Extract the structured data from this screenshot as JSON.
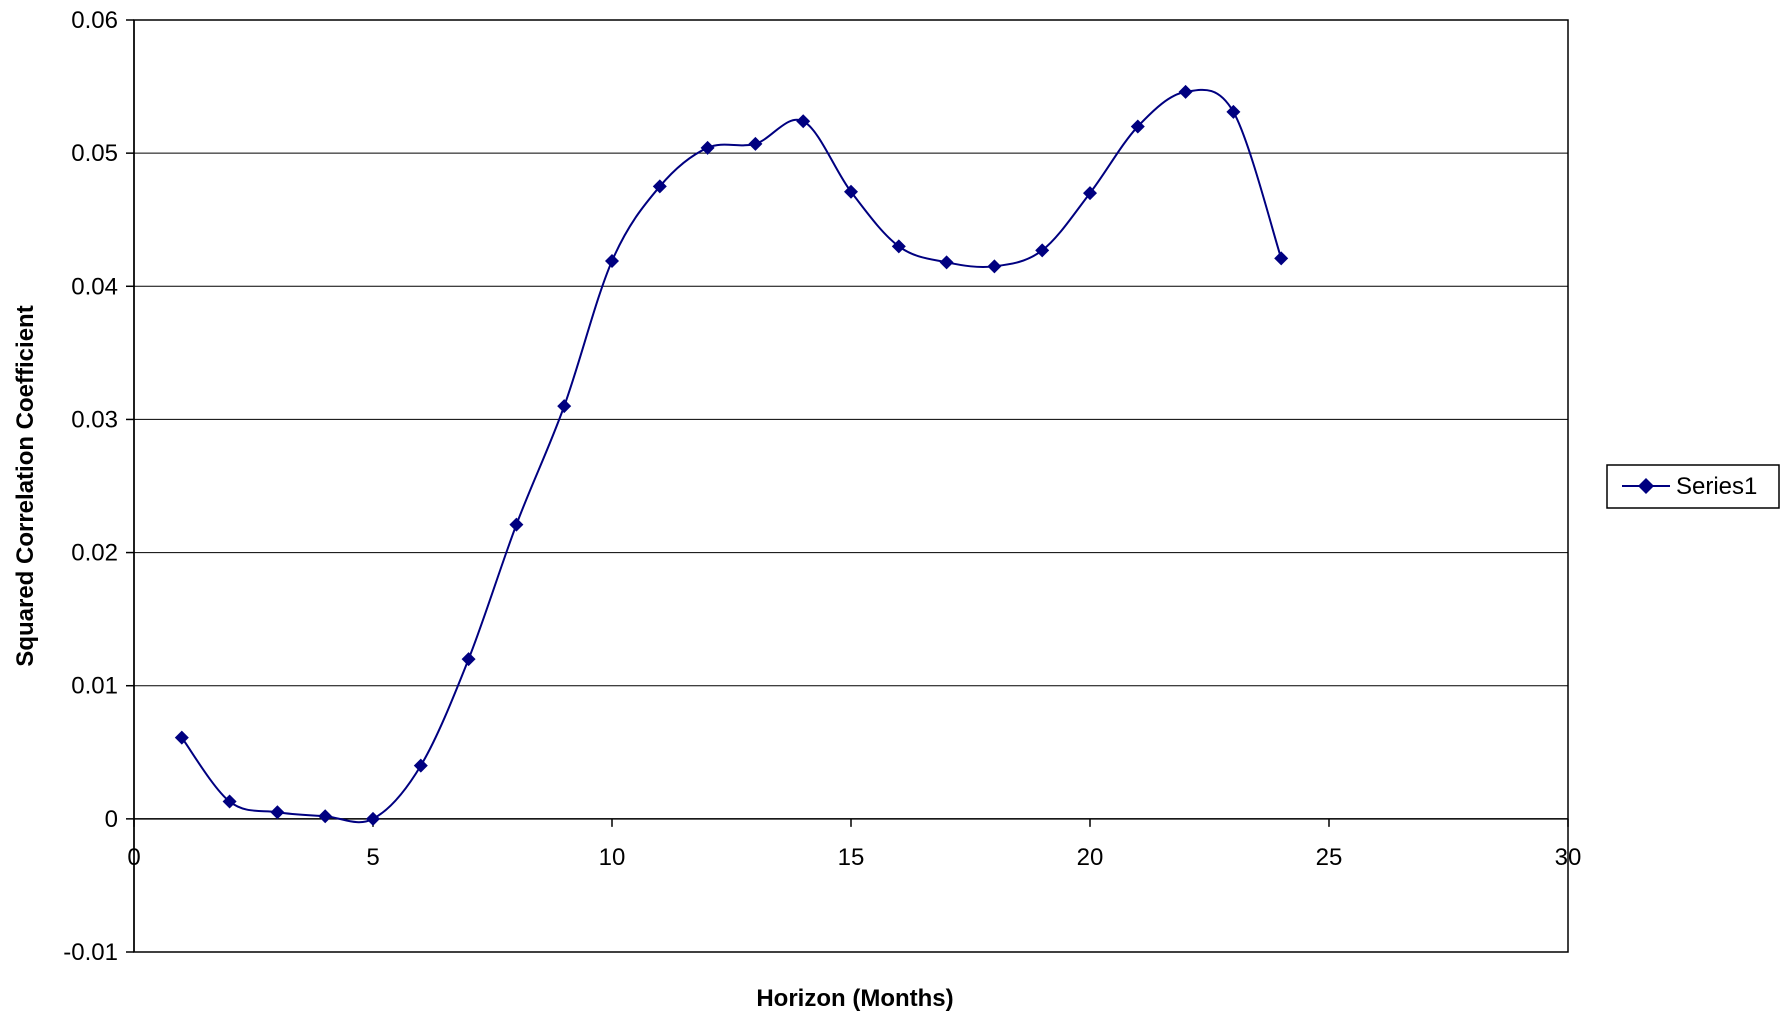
{
  "chart_data": {
    "type": "scatter",
    "title": "",
    "xlabel": "Horizon (Months)",
    "ylabel": "Squared Correlation Coefficient",
    "xlim": [
      0,
      30
    ],
    "ylim": [
      -0.01,
      0.06
    ],
    "x_ticks": [
      "0",
      "5",
      "10",
      "15",
      "20",
      "25",
      "30"
    ],
    "y_ticks": [
      "-0.01",
      "0",
      "0.01",
      "0.02",
      "0.03",
      "0.04",
      "0.05",
      "0.06"
    ],
    "x_tick_values": [
      0,
      5,
      10,
      15,
      20,
      25,
      30
    ],
    "y_tick_values": [
      -0.01,
      0,
      0.01,
      0.02,
      0.03,
      0.04,
      0.05,
      0.06
    ],
    "grid": "horizontal major gridlines",
    "line_style": "smoothed line with diamond markers",
    "legend_position": "right",
    "series": [
      {
        "name": "Series1",
        "color": "#000080",
        "x": [
          1,
          2,
          3,
          4,
          5,
          6,
          7,
          8,
          9,
          10,
          11,
          12,
          13,
          14,
          15,
          16,
          17,
          18,
          19,
          20,
          21,
          22,
          23,
          24
        ],
        "y": [
          0.0061,
          0.0013,
          0.0005,
          0.0002,
          0.0,
          0.004,
          0.012,
          0.0221,
          0.031,
          0.0419,
          0.0475,
          0.0504,
          0.0507,
          0.0524,
          0.0471,
          0.043,
          0.0418,
          0.0415,
          0.0427,
          0.047,
          0.052,
          0.0546,
          0.0531,
          0.0421
        ]
      }
    ]
  }
}
